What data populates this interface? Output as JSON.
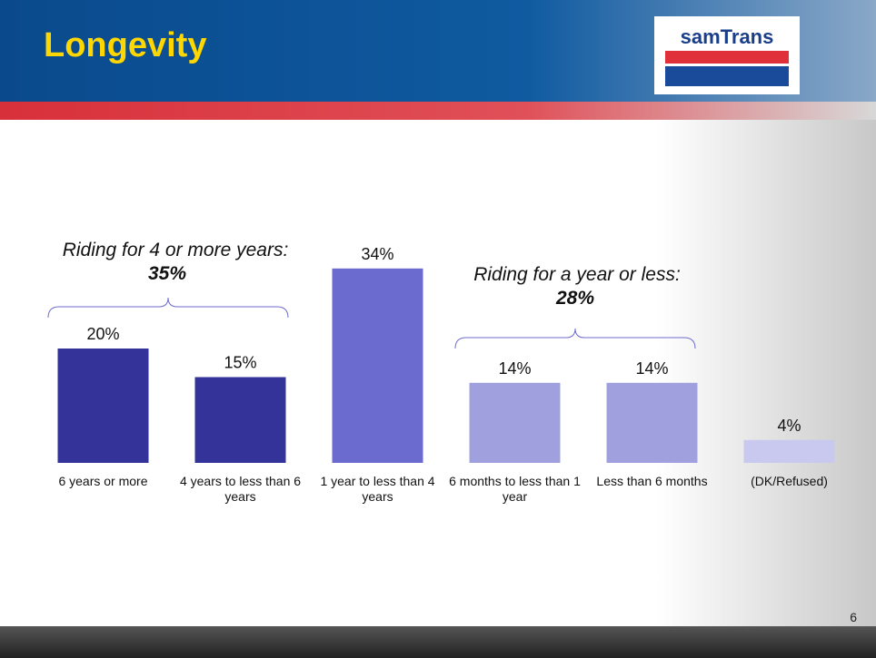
{
  "header": {
    "title": "Longevity",
    "logo": "samTrans"
  },
  "page_number": "6",
  "chart_data": {
    "type": "bar",
    "categories": [
      "6 years or more",
      "4 years to less than 6 years",
      "1 year to less than 4 years",
      "6 months to less than 1 year",
      "Less than 6 months",
      "(DK/Refused)"
    ],
    "values": [
      20,
      15,
      34,
      14,
      14,
      4
    ],
    "value_labels": [
      "20%",
      "15%",
      "34%",
      "14%",
      "14%",
      "4%"
    ],
    "colors": [
      "#333399",
      "#333399",
      "#6b6bcf",
      "#a0a0df",
      "#a0a0df",
      "#c9c9ef"
    ],
    "annotations": [
      {
        "text": "Riding for 4 or more years:",
        "value": "35%"
      },
      {
        "text": "Riding for a year or less:",
        "value": "28%"
      }
    ]
  }
}
